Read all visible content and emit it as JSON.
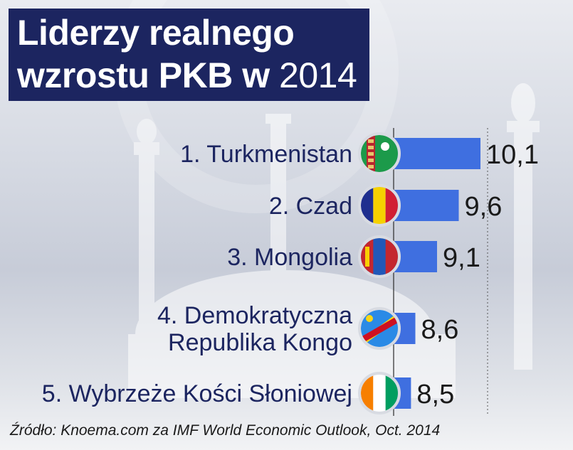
{
  "title": {
    "line1": "Liderzy realnego",
    "line2": "wzrostu PKB w ",
    "year": "2014"
  },
  "source": "Źródło: Knoema.com za IMF World Economic Outlook, Oct. 2014",
  "colors": {
    "bar": "#3f6fe0",
    "title_bg": "#1c2560",
    "text": "#1a1a1a"
  },
  "chart_data": {
    "type": "bar",
    "orientation": "horizontal",
    "title": "Liderzy realnego wzrostu PKB w 2014",
    "categories": [
      "1. Turkmenistan",
      "2. Czad",
      "3. Mongolia",
      "4. Demokratyczna Republika Kongo",
      "5. Wybrzeże Kości Słoniowej"
    ],
    "category_lines": [
      [
        "1. Turkmenistan"
      ],
      [
        "2. Czad"
      ],
      [
        "3. Mongolia"
      ],
      [
        "4. Demokratyczna",
        "Republika Kongo"
      ],
      [
        "5. Wybrzeże Kości Słoniowej"
      ]
    ],
    "values": [
      10.1,
      9.6,
      9.1,
      8.6,
      8.5
    ],
    "value_labels": [
      "10,1",
      "9,6",
      "9,1",
      "8,6",
      "8,5"
    ],
    "flag_icons": [
      "turkmenistan-flag-icon",
      "chad-flag-icon",
      "mongolia-flag-icon",
      "dr-congo-flag-icon",
      "ivory-coast-flag-icon"
    ],
    "xlim": [
      8.1,
      10.1
    ]
  }
}
